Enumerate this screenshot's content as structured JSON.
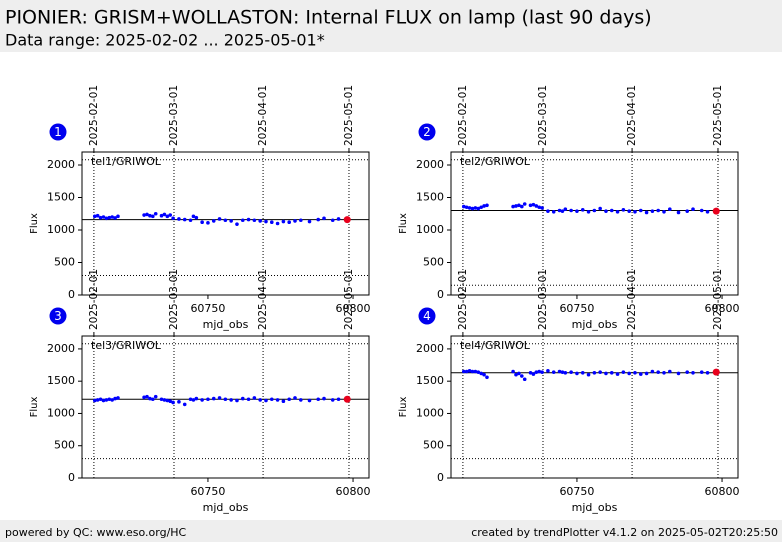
{
  "header": {
    "title": "PIONIER: GRISM+WOLLASTON: Internal FLUX on lamp  (last 90 days)",
    "subtitle": "Data range: 2025-02-02 ... 2025-05-01*"
  },
  "footer": {
    "left": "powered by QC: www.eso.org/HC",
    "right": "created by trendPlotter v4.1.2 on 2025-05-02T20:25:50"
  },
  "chart_data": [
    {
      "type": "scatter",
      "badge": "1",
      "label": "tel1/GRIWOL",
      "xlabel": "mjd_obs",
      "ylabel": "Flux",
      "color": "#0000ff",
      "last_point_color": "#e8001c",
      "xlim": [
        60706.6,
        60805.5
      ],
      "ylim": [
        0,
        2200
      ],
      "xticks": [
        60750,
        60800
      ],
      "yticks": [
        0,
        500,
        1000,
        1500,
        2000
      ],
      "top_ticks": [
        {
          "value": 60710.7,
          "label": "2025-02-01"
        },
        {
          "value": 60738.3,
          "label": "2025-03-01"
        },
        {
          "value": 60769.0,
          "label": "2025-04-01"
        },
        {
          "value": 60798.6,
          "label": "2025-05-01"
        }
      ],
      "ref_line": 1160,
      "limits": [
        300,
        2080
      ],
      "x": [
        60711,
        60712,
        60713,
        60714,
        60715,
        60716,
        60717,
        60718,
        60719,
        60728,
        60729,
        60730,
        60731,
        60732,
        60734,
        60735,
        60736,
        60737,
        60738,
        60740,
        60742,
        60744,
        60745,
        60746,
        60748,
        60750,
        60752,
        60754,
        60756,
        60758,
        60760,
        60762,
        60764,
        60766,
        60768,
        60770,
        60772,
        60774,
        60776,
        60778,
        60780,
        60782,
        60785,
        60788,
        60790,
        60793,
        60795,
        60798
      ],
      "values": [
        1210,
        1220,
        1190,
        1200,
        1180,
        1190,
        1200,
        1185,
        1210,
        1230,
        1240,
        1220,
        1210,
        1250,
        1220,
        1240,
        1210,
        1230,
        1180,
        1170,
        1160,
        1150,
        1210,
        1190,
        1120,
        1110,
        1140,
        1170,
        1150,
        1140,
        1090,
        1150,
        1160,
        1150,
        1140,
        1130,
        1120,
        1100,
        1130,
        1120,
        1140,
        1150,
        1130,
        1160,
        1180,
        1150,
        1170,
        1160
      ]
    },
    {
      "type": "scatter",
      "badge": "2",
      "label": "tel2/GRIWOL",
      "xlabel": "mjd_obs",
      "ylabel": "Flux",
      "color": "#0000ff",
      "last_point_color": "#e8001c",
      "xlim": [
        60706.6,
        60805.5
      ],
      "ylim": [
        0,
        2200
      ],
      "xticks": [
        60750,
        60800
      ],
      "yticks": [
        0,
        500,
        1000,
        1500,
        2000
      ],
      "top_ticks": [
        {
          "value": 60710.7,
          "label": "2025-02-01"
        },
        {
          "value": 60738.3,
          "label": "2025-03-01"
        },
        {
          "value": 60769.0,
          "label": "2025-04-01"
        },
        {
          "value": 60798.6,
          "label": "2025-05-01"
        }
      ],
      "ref_line": 1300,
      "limits": [
        150,
        2080
      ],
      "x": [
        60711,
        60712,
        60713,
        60714,
        60715,
        60716,
        60717,
        60718,
        60719,
        60728,
        60729,
        60730,
        60731,
        60732,
        60734,
        60735,
        60736,
        60737,
        60738,
        60740,
        60742,
        60744,
        60745,
        60746,
        60748,
        60750,
        60752,
        60754,
        60756,
        60758,
        60760,
        60762,
        60764,
        60766,
        60768,
        60770,
        60772,
        60774,
        60776,
        60778,
        60780,
        60782,
        60785,
        60788,
        60790,
        60793,
        60795,
        60798
      ],
      "values": [
        1360,
        1350,
        1340,
        1330,
        1340,
        1330,
        1350,
        1370,
        1380,
        1360,
        1370,
        1380,
        1360,
        1400,
        1380,
        1390,
        1370,
        1350,
        1340,
        1290,
        1280,
        1300,
        1290,
        1320,
        1300,
        1290,
        1310,
        1280,
        1300,
        1330,
        1290,
        1300,
        1280,
        1310,
        1290,
        1280,
        1300,
        1270,
        1290,
        1300,
        1280,
        1320,
        1270,
        1290,
        1320,
        1300,
        1280,
        1290
      ]
    },
    {
      "type": "scatter",
      "badge": "3",
      "label": "tel3/GRIWOL",
      "xlabel": "mjd_obs",
      "ylabel": "Flux",
      "color": "#0000ff",
      "last_point_color": "#e8001c",
      "xlim": [
        60706.6,
        60805.5
      ],
      "ylim": [
        0,
        2200
      ],
      "xticks": [
        60750,
        60800
      ],
      "yticks": [
        0,
        500,
        1000,
        1500,
        2000
      ],
      "top_ticks": [
        {
          "value": 60710.7,
          "label": "2025-02-01"
        },
        {
          "value": 60738.3,
          "label": "2025-03-01"
        },
        {
          "value": 60769.0,
          "label": "2025-04-01"
        },
        {
          "value": 60798.6,
          "label": "2025-05-01"
        }
      ],
      "ref_line": 1220,
      "limits": [
        300,
        2080
      ],
      "x": [
        60711,
        60712,
        60713,
        60714,
        60715,
        60716,
        60717,
        60718,
        60719,
        60728,
        60729,
        60730,
        60731,
        60732,
        60734,
        60735,
        60736,
        60737,
        60738,
        60740,
        60742,
        60744,
        60745,
        60746,
        60748,
        60750,
        60752,
        60754,
        60756,
        60758,
        60760,
        60762,
        60764,
        60766,
        60768,
        60770,
        60772,
        60774,
        60776,
        60778,
        60780,
        60782,
        60785,
        60788,
        60790,
        60793,
        60795,
        60798
      ],
      "values": [
        1200,
        1210,
        1220,
        1200,
        1210,
        1220,
        1210,
        1230,
        1240,
        1250,
        1260,
        1230,
        1220,
        1260,
        1220,
        1210,
        1200,
        1190,
        1170,
        1180,
        1140,
        1220,
        1210,
        1230,
        1210,
        1220,
        1230,
        1240,
        1220,
        1210,
        1200,
        1230,
        1220,
        1240,
        1210,
        1200,
        1220,
        1210,
        1190,
        1220,
        1240,
        1210,
        1200,
        1220,
        1230,
        1210,
        1220,
        1220
      ]
    },
    {
      "type": "scatter",
      "badge": "4",
      "label": "tel4/GRIWOL",
      "xlabel": "mjd_obs",
      "ylabel": "Flux",
      "color": "#0000ff",
      "last_point_color": "#e8001c",
      "xlim": [
        60706.6,
        60805.5
      ],
      "ylim": [
        0,
        2200
      ],
      "xticks": [
        60750,
        60800
      ],
      "yticks": [
        0,
        500,
        1000,
        1500,
        2000
      ],
      "top_ticks": [
        {
          "value": 60710.7,
          "label": "2025-02-01"
        },
        {
          "value": 60738.3,
          "label": "2025-03-01"
        },
        {
          "value": 60769.0,
          "label": "2025-04-01"
        },
        {
          "value": 60798.6,
          "label": "2025-05-01"
        }
      ],
      "ref_line": 1630,
      "limits": [
        300,
        2080
      ],
      "x": [
        60711,
        60712,
        60713,
        60714,
        60715,
        60716,
        60717,
        60718,
        60719,
        60728,
        60729,
        60730,
        60731,
        60732,
        60734,
        60735,
        60736,
        60737,
        60738,
        60740,
        60742,
        60744,
        60745,
        60746,
        60748,
        60750,
        60752,
        60754,
        60756,
        60758,
        60760,
        60762,
        60764,
        60766,
        60768,
        60770,
        60772,
        60774,
        60776,
        60778,
        60780,
        60782,
        60785,
        60788,
        60790,
        60793,
        60795,
        60798
      ],
      "values": [
        1650,
        1650,
        1660,
        1650,
        1650,
        1640,
        1620,
        1600,
        1560,
        1650,
        1600,
        1620,
        1580,
        1530,
        1630,
        1610,
        1640,
        1650,
        1640,
        1660,
        1640,
        1650,
        1640,
        1630,
        1640,
        1620,
        1630,
        1600,
        1630,
        1640,
        1620,
        1630,
        1610,
        1640,
        1620,
        1630,
        1610,
        1620,
        1650,
        1640,
        1630,
        1650,
        1620,
        1640,
        1630,
        1640,
        1630,
        1640
      ]
    }
  ]
}
